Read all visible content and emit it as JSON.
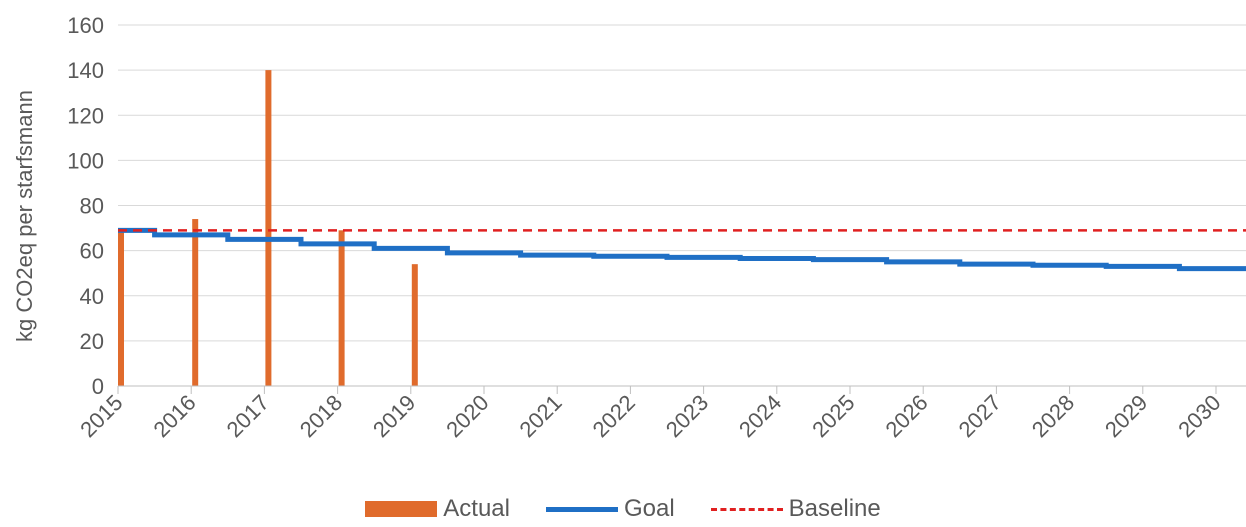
{
  "chart_data": {
    "type": "bar",
    "title": "",
    "xlabel": "",
    "ylabel": "kg CO2eq per starfsmann",
    "ylim": [
      0,
      160
    ],
    "yticks": [
      0,
      20,
      40,
      60,
      80,
      100,
      120,
      140,
      160
    ],
    "x_ticks": [
      2015,
      2016,
      2017,
      2018,
      2019,
      2020,
      2021,
      2022,
      2023,
      2024,
      2025,
      2026,
      2027,
      2028,
      2029,
      2030
    ],
    "grid": true,
    "legend_position": "bottom",
    "series": [
      {
        "name": "Actual",
        "type": "bar",
        "color": "#E06B2C",
        "x": [
          2015,
          2016,
          2017,
          2018,
          2019
        ],
        "values": [
          68,
          74,
          140,
          69,
          54
        ]
      },
      {
        "name": "Goal",
        "type": "step-line",
        "color": "#1F6FC5",
        "x": [
          2015,
          2016,
          2017,
          2018,
          2019,
          2020,
          2021,
          2022,
          2023,
          2024,
          2025,
          2026,
          2027,
          2028,
          2029,
          2030
        ],
        "values": [
          69,
          67,
          65,
          63,
          61,
          59,
          58,
          57.5,
          57,
          56.5,
          56,
          55,
          54,
          53.5,
          53,
          52
        ]
      },
      {
        "name": "Baseline",
        "type": "dashed-line",
        "color": "#E02020",
        "value": 69
      }
    ]
  }
}
